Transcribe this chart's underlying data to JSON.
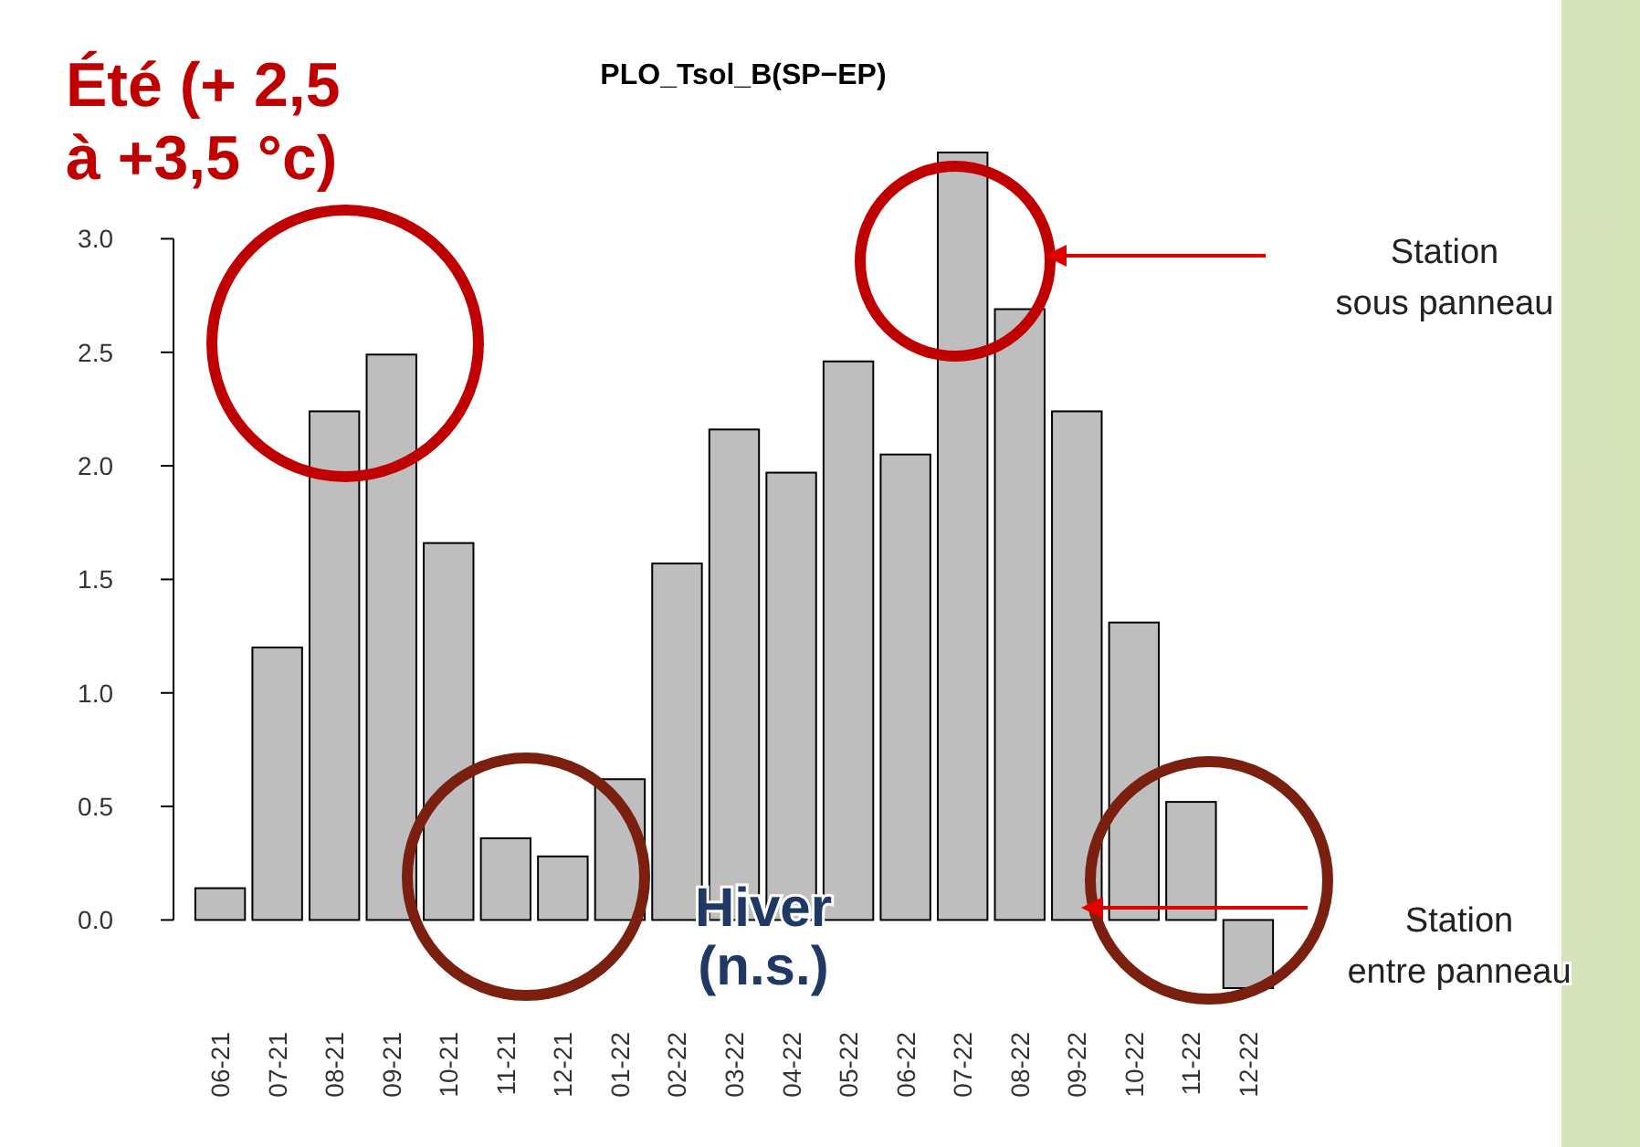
{
  "chart_data": {
    "type": "bar",
    "title": "PLO_Tsol_B(SP−EP)",
    "categories": [
      "06-21",
      "07-21",
      "08-21",
      "09-21",
      "10-21",
      "11-21",
      "12-21",
      "01-22",
      "02-22",
      "03-22",
      "04-22",
      "05-22",
      "06-22",
      "07-22",
      "08-22",
      "09-22",
      "10-22",
      "11-22",
      "12-22"
    ],
    "values": [
      0.14,
      1.2,
      2.24,
      2.49,
      1.66,
      0.36,
      0.28,
      0.62,
      1.57,
      2.16,
      1.97,
      2.46,
      2.05,
      3.38,
      2.69,
      2.24,
      1.31,
      0.52,
      -0.3
    ],
    "color": "#bebebe",
    "ylim": [
      -0.3,
      3.4
    ],
    "yticks": [
      {
        "value": 0,
        "label": "0.0"
      },
      0.5,
      {
        "value": 1,
        "label": "1.0"
      },
      1.5,
      {
        "value": 2,
        "label": "2.0"
      },
      2.5,
      {
        "value": 3,
        "label": "3.0"
      }
    ],
    "grid": false,
    "annotations": [
      "Été (+ 2,5\nà +3,5 °c)",
      "Hiver\n(n.s.)",
      "Station\nsous panneau",
      "Station\nentre panneau"
    ]
  }
}
